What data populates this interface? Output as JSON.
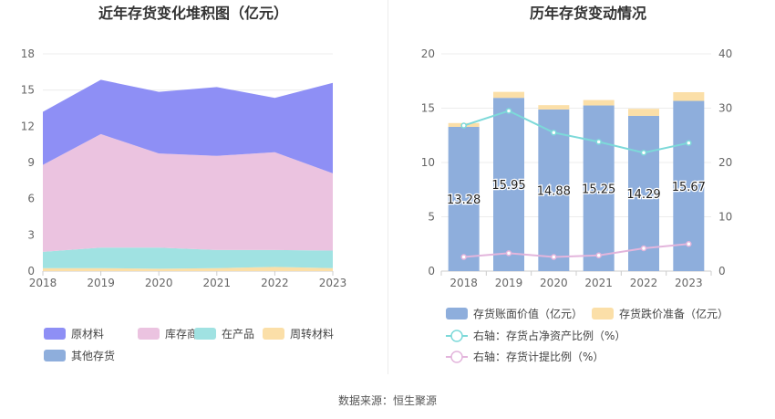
{
  "source_label": "数据来源：恒生聚源",
  "chart_data": [
    {
      "type": "area",
      "title": "近年存货变化堆积图（亿元）",
      "x": [
        "2018",
        "2019",
        "2020",
        "2021",
        "2022",
        "2023"
      ],
      "ylim": [
        0,
        18
      ],
      "yticks": [
        "0",
        "3",
        "6",
        "9",
        "12",
        "15",
        "18"
      ],
      "stack_order": [
        "周转材料",
        "在产品",
        "库存商品",
        "原材料"
      ],
      "series": [
        {
          "name": "原材料",
          "color": "#8e8ff5",
          "values": [
            4.4,
            4.5,
            5.1,
            5.7,
            4.5,
            7.5
          ]
        },
        {
          "name": "库存商品",
          "color": "#ebc3e0",
          "values": [
            7.2,
            9.4,
            7.8,
            7.8,
            8.1,
            6.4
          ]
        },
        {
          "name": "在产品",
          "color": "#a0e2e2",
          "values": [
            1.35,
            1.7,
            1.75,
            1.5,
            1.4,
            1.45
          ]
        },
        {
          "name": "周转材料",
          "color": "#fbdfa8",
          "values": [
            0.25,
            0.25,
            0.2,
            0.25,
            0.35,
            0.25
          ]
        },
        {
          "name": "其他存货",
          "color": "#8eaedc",
          "values": [
            0,
            0,
            0,
            0,
            0,
            0
          ]
        }
      ],
      "legend": [
        "原材料",
        "库存商品",
        "在产品",
        "周转材料",
        "其他存货"
      ],
      "legend_position": "bottom"
    },
    {
      "type": "bar",
      "title": "历年存货变动情况",
      "categories": [
        "2018",
        "2019",
        "2020",
        "2021",
        "2022",
        "2023"
      ],
      "ylim": [
        0,
        20
      ],
      "yticks": [
        "0",
        "5",
        "10",
        "15",
        "20"
      ],
      "y2lim": [
        0,
        40
      ],
      "y2ticks": [
        "0",
        "10",
        "20",
        "30",
        "40"
      ],
      "series": [
        {
          "name": "存货账面价值（亿元）",
          "kind": "bar",
          "color": "#8eaedc",
          "values": [
            13.28,
            15.95,
            14.88,
            15.25,
            14.29,
            15.67
          ],
          "labels": [
            "13.28",
            "15.95",
            "14.88",
            "15.25",
            "14.29",
            "15.67"
          ]
        },
        {
          "name": "存货跌价准备（亿元）",
          "kind": "bar",
          "color": "#fbdfa8",
          "values": [
            0.35,
            0.55,
            0.4,
            0.5,
            0.65,
            0.8
          ]
        },
        {
          "name": "右轴：存货占净资产比例（%）",
          "kind": "line",
          "axis": "right",
          "color": "#7dd9d9",
          "values": [
            26.8,
            29.5,
            25.5,
            23.8,
            21.8,
            23.6
          ]
        },
        {
          "name": "右轴：存货计提比例（%）",
          "kind": "line",
          "axis": "right",
          "color": "#e3b5dc",
          "values": [
            2.6,
            3.3,
            2.6,
            2.9,
            4.2,
            5.0
          ]
        }
      ],
      "legend_position": "bottom"
    }
  ]
}
